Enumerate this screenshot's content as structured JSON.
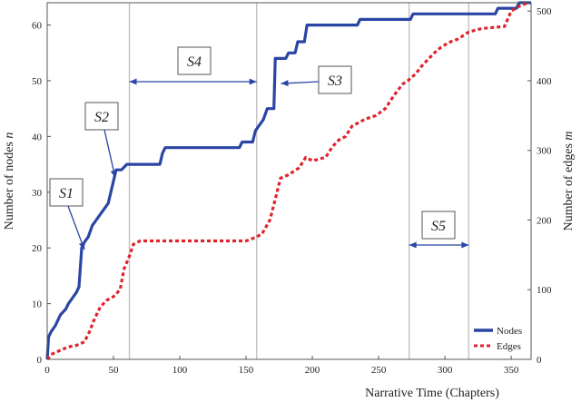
{
  "chart_data": {
    "type": "line",
    "xlabel": "Narrative Time (Chapters)",
    "ylabel_left": "Number of nodes n",
    "ylabel_left_prefix": "Number of nodes ",
    "ylabel_left_var": "n",
    "ylabel_right": "Number of edges m",
    "ylabel_right_prefix": "Number of edges ",
    "ylabel_right_var": "m",
    "xlim": [
      0,
      365
    ],
    "ylim_left": [
      0,
      64
    ],
    "ylim_right": [
      0,
      512
    ],
    "x_ticks": [
      0,
      50,
      100,
      150,
      200,
      250,
      300,
      350
    ],
    "y_left_ticks": [
      0,
      10,
      20,
      30,
      40,
      50,
      60
    ],
    "y_right_ticks": [
      0,
      100,
      200,
      300,
      400,
      500
    ],
    "grid": false,
    "legend_position": "bottom-right",
    "vertical_lines": [
      62,
      158,
      273,
      318
    ],
    "series": [
      {
        "name": "Nodes",
        "axis": "left",
        "style": "solid",
        "color": "#2a45a4",
        "points": [
          [
            0,
            0
          ],
          [
            1,
            4
          ],
          [
            3,
            5
          ],
          [
            6,
            6
          ],
          [
            8,
            7
          ],
          [
            10,
            8
          ],
          [
            14,
            9
          ],
          [
            16,
            10
          ],
          [
            19,
            11
          ],
          [
            22,
            12
          ],
          [
            24,
            13
          ],
          [
            26,
            20
          ],
          [
            28,
            21
          ],
          [
            31,
            22
          ],
          [
            34,
            24
          ],
          [
            37,
            25
          ],
          [
            40,
            26
          ],
          [
            43,
            27
          ],
          [
            46,
            28
          ],
          [
            48,
            30
          ],
          [
            50,
            32
          ],
          [
            52,
            34
          ],
          [
            56,
            34
          ],
          [
            60,
            35
          ],
          [
            85,
            35
          ],
          [
            87,
            37
          ],
          [
            89,
            38
          ],
          [
            145,
            38
          ],
          [
            147,
            39
          ],
          [
            155,
            39
          ],
          [
            157,
            41
          ],
          [
            160,
            42
          ],
          [
            163,
            43
          ],
          [
            166,
            45
          ],
          [
            171,
            45
          ],
          [
            172,
            54
          ],
          [
            180,
            54
          ],
          [
            182,
            55
          ],
          [
            187,
            55
          ],
          [
            189,
            57
          ],
          [
            194,
            57
          ],
          [
            196,
            60
          ],
          [
            234,
            60
          ],
          [
            236,
            61
          ],
          [
            274,
            61
          ],
          [
            276,
            62
          ],
          [
            338,
            62
          ],
          [
            340,
            63
          ],
          [
            354,
            63
          ],
          [
            356,
            64
          ],
          [
            365,
            64
          ]
        ]
      },
      {
        "name": "Edges",
        "axis": "right",
        "style": "dashed",
        "color": "#e0242e",
        "points": [
          [
            0,
            0
          ],
          [
            4,
            8
          ],
          [
            10,
            13
          ],
          [
            16,
            18
          ],
          [
            22,
            20
          ],
          [
            28,
            25
          ],
          [
            32,
            40
          ],
          [
            35,
            55
          ],
          [
            40,
            75
          ],
          [
            45,
            85
          ],
          [
            50,
            90
          ],
          [
            55,
            100
          ],
          [
            58,
            130
          ],
          [
            62,
            148
          ],
          [
            65,
            165
          ],
          [
            70,
            170
          ],
          [
            150,
            170
          ],
          [
            157,
            175
          ],
          [
            162,
            180
          ],
          [
            168,
            200
          ],
          [
            172,
            230
          ],
          [
            176,
            260
          ],
          [
            182,
            265
          ],
          [
            186,
            270
          ],
          [
            190,
            275
          ],
          [
            195,
            290
          ],
          [
            200,
            285
          ],
          [
            210,
            290
          ],
          [
            215,
            305
          ],
          [
            220,
            315
          ],
          [
            225,
            320
          ],
          [
            230,
            335
          ],
          [
            240,
            345
          ],
          [
            248,
            350
          ],
          [
            255,
            360
          ],
          [
            262,
            380
          ],
          [
            268,
            395
          ],
          [
            272,
            400
          ],
          [
            278,
            410
          ],
          [
            282,
            420
          ],
          [
            287,
            430
          ],
          [
            292,
            440
          ],
          [
            297,
            448
          ],
          [
            303,
            455
          ],
          [
            310,
            460
          ],
          [
            314,
            465
          ],
          [
            318,
            470
          ],
          [
            328,
            475
          ],
          [
            345,
            478
          ],
          [
            350,
            500
          ],
          [
            357,
            508
          ],
          [
            363,
            512
          ]
        ]
      }
    ],
    "annotations": [
      {
        "label": "S1"
      },
      {
        "label": "S2"
      },
      {
        "label": "S3"
      },
      {
        "label": "S4"
      },
      {
        "label": "S5"
      }
    ]
  }
}
